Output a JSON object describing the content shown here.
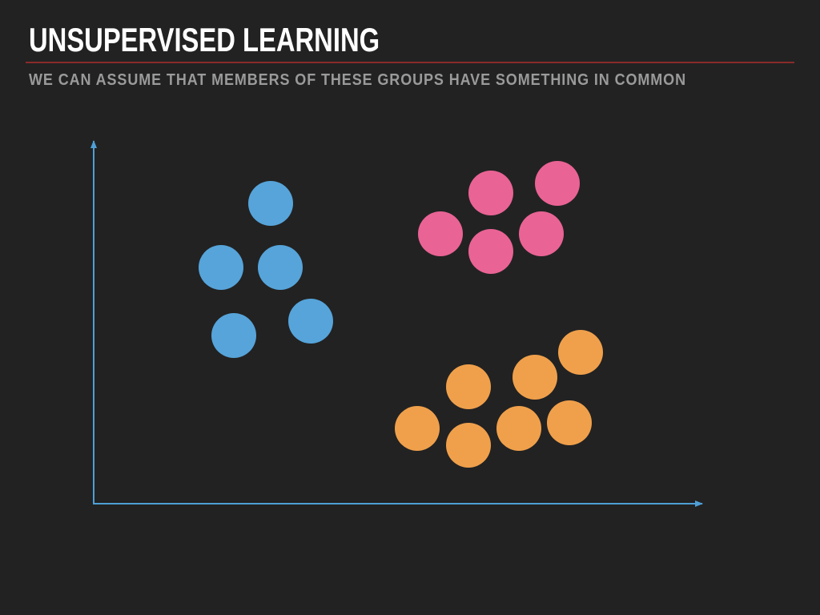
{
  "slide": {
    "title": "UNSUPERVISED LEARNING",
    "subtitle": "WE CAN ASSUME THAT MEMBERS OF THESE GROUPS HAVE SOMETHING IN COMMON"
  },
  "colors": {
    "background": "#222222",
    "title": "#ffffff",
    "subtitle": "#9a9a9a",
    "rule": "#8b2a2a",
    "axes": "#4f9fd6",
    "cluster_blue": "#56a4da",
    "cluster_pink": "#ea6395",
    "cluster_orange": "#f0a04b"
  },
  "clusters": [
    {
      "name": "cluster-blue",
      "color": "#56a4da",
      "count": 5
    },
    {
      "name": "cluster-pink",
      "color": "#ea6395",
      "count": 5
    },
    {
      "name": "cluster-orange",
      "color": "#f0a04b",
      "count": 7
    }
  ]
}
